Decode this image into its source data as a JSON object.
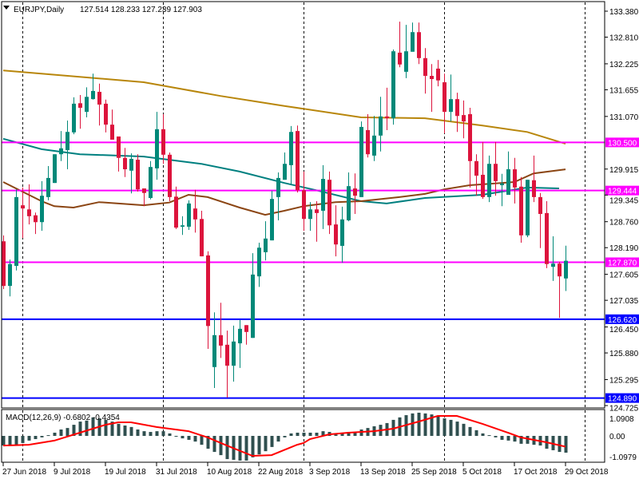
{
  "header": {
    "symbol": "EURJPY,Daily",
    "ohlc": "127.514 128.233 127.239 127.903",
    "menu_icon": "triangle-down-icon"
  },
  "colors": {
    "bull": "#008878",
    "bear": "#dc143c",
    "ma_long": "#b8860b",
    "ma_mid": "#008080",
    "ma_short": "#8b4513",
    "level_magenta": "#ff00ff",
    "level_blue": "#0000ff",
    "macd_hist": "#2f4f4f",
    "macd_signal": "#ff0000"
  },
  "chart_data": [
    {
      "type": "candlestick",
      "title": "EURJPY,Daily",
      "ylim": [
        124.725,
        133.38
      ],
      "y_ticks": [
        "133.380",
        "132.810",
        "132.225",
        "131.655",
        "131.070",
        "129.915",
        "129.345",
        "128.760",
        "128.190",
        "127.605",
        "127.035",
        "126.450",
        "125.880",
        "125.295",
        "124.725"
      ],
      "x_tick_labels": [
        {
          "index": 1,
          "label": "27 Jun 2018"
        },
        {
          "index": 9,
          "label": "9 Jul 2018"
        },
        {
          "index": 17,
          "label": "19 Jul 2018"
        },
        {
          "index": 25,
          "label": "31 Jul 2018"
        },
        {
          "index": 33,
          "label": "10 Aug 2018"
        },
        {
          "index": 41,
          "label": "22 Aug 2018"
        },
        {
          "index": 49,
          "label": "3 Sep 2018"
        },
        {
          "index": 57,
          "label": "13 Sep 2018"
        },
        {
          "index": 65,
          "label": "25 Sep 2018"
        },
        {
          "index": 73,
          "label": "5 Oct 2018"
        },
        {
          "index": 81,
          "label": "17 Oct 2018"
        },
        {
          "index": 89,
          "label": "29 Oct 2018"
        }
      ],
      "grid": "vertical-dashed",
      "candles_ohlc": [
        [
          128.33,
          128.46,
          127.28,
          127.35
        ],
        [
          127.35,
          127.93,
          127.12,
          127.83
        ],
        [
          127.79,
          129.47,
          127.69,
          129.3
        ],
        [
          129.12,
          129.51,
          128.4,
          129.05
        ],
        [
          129.03,
          129.58,
          128.7,
          128.88
        ],
        [
          128.9,
          128.96,
          128.49,
          128.75
        ],
        [
          128.75,
          129.65,
          128.56,
          129.33
        ],
        [
          129.3,
          129.98,
          129.23,
          129.72
        ],
        [
          129.61,
          130.24,
          129.61,
          130.24
        ],
        [
          130.24,
          130.75,
          130.09,
          130.37
        ],
        [
          130.33,
          130.98,
          129.91,
          130.73
        ],
        [
          130.72,
          131.49,
          130.68,
          131.35
        ],
        [
          131.36,
          131.54,
          130.8,
          131.26
        ],
        [
          131.17,
          131.71,
          131.05,
          131.5
        ],
        [
          131.45,
          132.01,
          131.44,
          131.63
        ],
        [
          131.61,
          131.79,
          130.87,
          131.33
        ],
        [
          131.35,
          131.44,
          130.72,
          130.89
        ],
        [
          130.89,
          131.22,
          130.56,
          130.56
        ],
        [
          130.63,
          130.63,
          129.86,
          130.16
        ],
        [
          130.16,
          130.38,
          129.74,
          129.91
        ],
        [
          129.88,
          130.26,
          129.38,
          130.14
        ],
        [
          130.12,
          130.24,
          129.42,
          129.47
        ],
        [
          129.49,
          129.49,
          129.1,
          129.39
        ],
        [
          129.28,
          130.09,
          129.25,
          129.96
        ],
        [
          129.93,
          131.17,
          129.68,
          130.79
        ],
        [
          130.79,
          131.12,
          130.03,
          130.23
        ],
        [
          130.23,
          130.28,
          129.21,
          129.3
        ],
        [
          129.31,
          129.53,
          128.6,
          128.63
        ],
        [
          128.65,
          128.88,
          128.47,
          128.68
        ],
        [
          128.65,
          129.23,
          128.58,
          129.16
        ],
        [
          129.05,
          129.46,
          128.52,
          128.81
        ],
        [
          128.82,
          129.0,
          128.0,
          128.0
        ],
        [
          128.02,
          128.11,
          125.97,
          126.47
        ],
        [
          125.57,
          126.77,
          125.11,
          126.27
        ],
        [
          126.27,
          126.98,
          125.77,
          126.04
        ],
        [
          126.06,
          126.37,
          124.9,
          125.6
        ],
        [
          125.6,
          126.48,
          125.25,
          126.13
        ],
        [
          126.09,
          126.6,
          125.55,
          126.41
        ],
        [
          126.49,
          126.49,
          126.06,
          126.34
        ],
        [
          126.21,
          128.07,
          126.21,
          127.6
        ],
        [
          127.56,
          128.3,
          127.33,
          128.19
        ],
        [
          128.09,
          128.77,
          127.91,
          128.39
        ],
        [
          128.35,
          129.44,
          128.35,
          129.26
        ],
        [
          129.3,
          129.84,
          128.79,
          129.72
        ],
        [
          129.68,
          130.28,
          129.68,
          130.03
        ],
        [
          130.0,
          130.86,
          129.58,
          130.73
        ],
        [
          130.75,
          130.87,
          129.4,
          129.45
        ],
        [
          129.45,
          129.86,
          128.56,
          128.82
        ],
        [
          128.82,
          129.19,
          128.56,
          129.03
        ],
        [
          129.03,
          129.21,
          128.32,
          128.95
        ],
        [
          129.0,
          130.0,
          128.6,
          129.7
        ],
        [
          129.68,
          129.86,
          128.49,
          128.68
        ],
        [
          128.7,
          129.12,
          128.0,
          128.26
        ],
        [
          128.23,
          129.09,
          127.86,
          128.81
        ],
        [
          128.79,
          129.84,
          128.77,
          129.54
        ],
        [
          129.49,
          129.82,
          128.93,
          129.33
        ],
        [
          129.3,
          130.96,
          129.3,
          130.84
        ],
        [
          130.77,
          131.12,
          130.17,
          130.24
        ],
        [
          130.21,
          131.08,
          130.09,
          130.65
        ],
        [
          130.65,
          131.5,
          130.3,
          131.07
        ],
        [
          131.07,
          131.7,
          130.77,
          131.03
        ],
        [
          131.03,
          132.54,
          130.89,
          132.5
        ],
        [
          132.47,
          133.15,
          132.15,
          132.21
        ],
        [
          132.05,
          133.08,
          131.91,
          132.5
        ],
        [
          132.49,
          133.13,
          132.49,
          132.92
        ],
        [
          132.92,
          133.13,
          132.22,
          132.35
        ],
        [
          132.35,
          132.57,
          131.57,
          131.96
        ],
        [
          131.96,
          132.22,
          131.17,
          131.89
        ],
        [
          132.12,
          132.31,
          131.73,
          131.86
        ],
        [
          131.82,
          132.01,
          130.7,
          131.17
        ],
        [
          131.17,
          131.99,
          130.96,
          131.45
        ],
        [
          131.45,
          131.59,
          130.73,
          131.08
        ],
        [
          131.1,
          131.42,
          130.59,
          130.96
        ],
        [
          131.12,
          131.26,
          129.51,
          130.09
        ],
        [
          130.09,
          130.24,
          129.33,
          129.77
        ],
        [
          129.79,
          130.51,
          129.26,
          129.3
        ],
        [
          129.3,
          130.21,
          129.19,
          130.03
        ],
        [
          130.03,
          130.51,
          129.33,
          129.65
        ],
        [
          129.56,
          129.81,
          129.1,
          129.6
        ],
        [
          129.35,
          130.3,
          129.35,
          129.91
        ],
        [
          129.91,
          130.16,
          129.16,
          129.51
        ],
        [
          129.53,
          129.74,
          128.3,
          128.46
        ],
        [
          128.46,
          129.68,
          128.42,
          129.68
        ],
        [
          129.67,
          130.21,
          129.19,
          129.3
        ],
        [
          129.3,
          129.39,
          128.18,
          128.93
        ],
        [
          128.95,
          129.21,
          127.74,
          127.83
        ],
        [
          127.77,
          128.44,
          127.46,
          127.84
        ],
        [
          127.84,
          127.88,
          126.65,
          127.56
        ],
        [
          127.514,
          128.233,
          127.239,
          127.903
        ]
      ],
      "moving_averages": [
        {
          "color_key": "ma_long",
          "points": [
            [
              1,
              132.08
            ],
            [
              23,
              131.82
            ],
            [
              35,
              131.52
            ],
            [
              45,
              131.3
            ],
            [
              57,
              131.05
            ],
            [
              67,
              131.03
            ],
            [
              76,
              130.87
            ],
            [
              83,
              130.73
            ],
            [
              89,
              130.47
            ]
          ]
        },
        {
          "color_key": "ma_mid",
          "points": [
            [
              1,
              130.58
            ],
            [
              7,
              130.35
            ],
            [
              13,
              130.24
            ],
            [
              23,
              130.19
            ],
            [
              32,
              130.03
            ],
            [
              38,
              129.86
            ],
            [
              45,
              129.61
            ],
            [
              50,
              129.45
            ],
            [
              57,
              129.21
            ],
            [
              61,
              129.16
            ],
            [
              67,
              129.28
            ],
            [
              76,
              129.35
            ],
            [
              83,
              129.51
            ],
            [
              88,
              129.49
            ]
          ]
        },
        {
          "color_key": "ma_short",
          "points": [
            [
              1,
              129.63
            ],
            [
              4,
              129.42
            ],
            [
              7,
              129.21
            ],
            [
              9,
              129.1
            ],
            [
              12,
              129.07
            ],
            [
              16,
              129.19
            ],
            [
              23,
              129.12
            ],
            [
              27,
              129.18
            ],
            [
              30,
              129.35
            ],
            [
              33,
              129.3
            ],
            [
              38,
              129.07
            ],
            [
              42,
              128.91
            ],
            [
              45,
              129.0
            ],
            [
              48,
              129.1
            ],
            [
              53,
              129.19
            ],
            [
              57,
              129.21
            ],
            [
              63,
              129.3
            ],
            [
              67,
              129.37
            ],
            [
              70,
              129.47
            ],
            [
              74,
              129.56
            ],
            [
              81,
              129.63
            ],
            [
              84,
              129.82
            ],
            [
              89,
              129.91
            ]
          ]
        }
      ],
      "levels": [
        {
          "value": 130.5,
          "label": "130.500",
          "color_key": "level_magenta"
        },
        {
          "value": 129.444,
          "label": "129.444",
          "color_key": "level_magenta"
        },
        {
          "value": 127.87,
          "label": "127.870",
          "color_key": "level_magenta"
        },
        {
          "value": 126.62,
          "label": "126.620",
          "color_key": "level_blue"
        },
        {
          "value": 124.89,
          "label": "124.890",
          "color_key": "level_blue"
        }
      ]
    },
    {
      "type": "bar",
      "title": "MACD(12,26,9) -0.6802 -0.4354",
      "y_ticks": [
        "1.0908",
        "0.00",
        "-1.0979"
      ],
      "histogram": [
        -0.39,
        -0.39,
        -0.36,
        -0.29,
        -0.19,
        -0.13,
        -0.06,
        0.03,
        0.13,
        0.26,
        0.32,
        0.45,
        0.58,
        0.62,
        0.75,
        0.71,
        0.65,
        0.58,
        0.49,
        0.42,
        0.36,
        0.26,
        0.19,
        0.16,
        0.19,
        0.19,
        0.1,
        0,
        -0.1,
        -0.16,
        -0.23,
        -0.36,
        -0.52,
        -0.65,
        -0.78,
        -0.94,
        -0.97,
        -1.0,
        -1.0,
        -0.87,
        -0.75,
        -0.62,
        -0.45,
        -0.23,
        -0.06,
        0.1,
        0.13,
        0.13,
        0.13,
        0.13,
        0.19,
        0.16,
        0.06,
        0.1,
        0.13,
        0.13,
        0.26,
        0.32,
        0.39,
        0.45,
        0.52,
        0.65,
        0.75,
        0.84,
        0.91,
        0.94,
        0.91,
        0.87,
        0.81,
        0.71,
        0.65,
        0.58,
        0.49,
        0.36,
        0.23,
        0.1,
        0.03,
        -0.06,
        -0.16,
        -0.19,
        -0.23,
        -0.32,
        -0.32,
        -0.36,
        -0.39,
        -0.52,
        -0.58,
        -0.65,
        -0.6802
      ],
      "signal_points": [
        [
          1,
          -0.39
        ],
        [
          5,
          -0.36
        ],
        [
          9,
          -0.19
        ],
        [
          13,
          0.13
        ],
        [
          17,
          0.45
        ],
        [
          19,
          0.55
        ],
        [
          21,
          0.55
        ],
        [
          25,
          0.36
        ],
        [
          30,
          0.19
        ],
        [
          33,
          -0.06
        ],
        [
          36,
          -0.39
        ],
        [
          40,
          -0.81
        ],
        [
          43,
          -0.78
        ],
        [
          47,
          -0.36
        ],
        [
          48,
          -0.29
        ],
        [
          49,
          -0.13
        ],
        [
          52,
          0.06
        ],
        [
          55,
          0.13
        ],
        [
          59,
          0.19
        ],
        [
          62,
          0.29
        ],
        [
          66,
          0.58
        ],
        [
          69,
          0.81
        ],
        [
          72,
          0.81
        ],
        [
          76,
          0.49
        ],
        [
          80,
          0.13
        ],
        [
          82,
          -0.06
        ],
        [
          86,
          -0.26
        ],
        [
          89,
          -0.4354
        ]
      ]
    }
  ]
}
